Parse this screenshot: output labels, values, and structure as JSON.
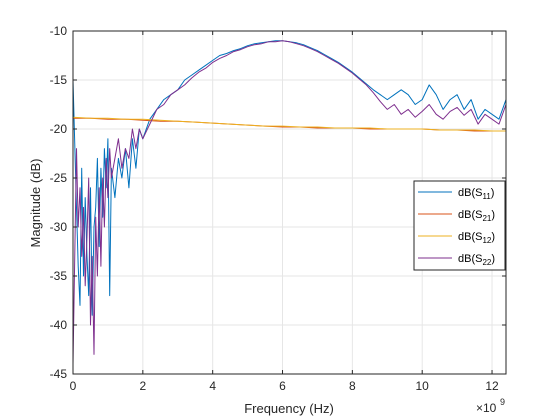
{
  "chart_data": {
    "type": "line",
    "xlabel": "Frequency (Hz)",
    "ylabel": "Magnitude (dB)",
    "x_exponent_label": "×10",
    "x_exponent_power": "9",
    "xlim": [
      0,
      12.4
    ],
    "ylim": [
      -45,
      -10
    ],
    "x_ticks": [
      0,
      2,
      4,
      6,
      8,
      10,
      12
    ],
    "x_tick_labels": [
      "0",
      "2",
      "4",
      "6",
      "8",
      "10",
      "12"
    ],
    "y_ticks": [
      -45,
      -40,
      -35,
      -30,
      -25,
      -20,
      -15,
      -10
    ],
    "y_tick_labels": [
      "-45",
      "-40",
      "-35",
      "-30",
      "-25",
      "-20",
      "-15",
      "-10"
    ],
    "grid": true,
    "legend_position": "right",
    "series": [
      {
        "name": "dB(S11)",
        "name_base": "dB(S",
        "name_sub": "11",
        "name_end": ")",
        "color": "#0072BD",
        "x": [
          0,
          0.1,
          0.15,
          0.2,
          0.25,
          0.3,
          0.35,
          0.4,
          0.45,
          0.5,
          0.55,
          0.6,
          0.65,
          0.7,
          0.75,
          0.8,
          0.85,
          0.9,
          0.95,
          1.0,
          1.05,
          1.1,
          1.2,
          1.3,
          1.4,
          1.5,
          1.6,
          1.7,
          1.8,
          1.9,
          2.0,
          2.2,
          2.4,
          2.6,
          2.8,
          3.0,
          3.2,
          3.4,
          3.6,
          3.8,
          4.0,
          4.2,
          4.4,
          4.6,
          4.8,
          5.0,
          5.2,
          5.4,
          5.6,
          5.8,
          6.0,
          6.2,
          6.4,
          6.6,
          6.8,
          7.0,
          7.2,
          7.4,
          7.6,
          7.8,
          8.0,
          8.2,
          8.4,
          8.6,
          8.8,
          9.0,
          9.2,
          9.4,
          9.6,
          9.8,
          10.0,
          10.2,
          10.4,
          10.6,
          10.8,
          11.0,
          11.2,
          11.4,
          11.6,
          11.8,
          12.0,
          12.2,
          12.4
        ],
        "y": [
          -15,
          -28,
          -34,
          -38,
          -24,
          -35,
          -27,
          -33,
          -37,
          -26,
          -39,
          -30,
          -28,
          -23,
          -32,
          -24,
          -29,
          -22,
          -26,
          -21,
          -37,
          -24,
          -27,
          -23,
          -25,
          -22,
          -26,
          -21,
          -24,
          -20,
          -21,
          -19,
          -18,
          -17,
          -16.5,
          -16,
          -15,
          -14.5,
          -14,
          -13.5,
          -13,
          -12.5,
          -12.3,
          -12,
          -11.8,
          -11.5,
          -11.3,
          -11.2,
          -11.1,
          -11,
          -11,
          -11.1,
          -11.2,
          -11.4,
          -11.7,
          -12,
          -12.4,
          -12.8,
          -13.2,
          -13.7,
          -14.2,
          -14.8,
          -15.4,
          -16,
          -16.5,
          -17,
          -16.5,
          -16,
          -16.5,
          -17.5,
          -17,
          -15.5,
          -16.5,
          -18,
          -17,
          -16.5,
          -18,
          -17,
          -19,
          -18,
          -18.5,
          -19,
          -17
        ]
      },
      {
        "name": "dB(S21)",
        "name_base": "dB(S",
        "name_sub": "21",
        "name_end": ")",
        "color": "#D95319",
        "x": [
          0,
          0.5,
          1,
          1.5,
          2,
          2.5,
          3,
          3.5,
          4,
          4.5,
          5,
          5.5,
          6,
          6.5,
          7,
          7.5,
          8,
          8.5,
          9,
          9.5,
          10,
          10.5,
          11,
          11.5,
          12,
          12.4
        ],
        "y": [
          -18.9,
          -18.9,
          -19.0,
          -19.0,
          -19.1,
          -19.2,
          -19.2,
          -19.3,
          -19.4,
          -19.5,
          -19.6,
          -19.7,
          -19.8,
          -19.8,
          -19.9,
          -19.9,
          -19.9,
          -20.0,
          -20.0,
          -20.0,
          -20.0,
          -20.1,
          -20.1,
          -20.2,
          -20.2,
          -20.2
        ]
      },
      {
        "name": "dB(S12)",
        "name_base": "dB(S",
        "name_sub": "12",
        "name_end": ")",
        "color": "#EDB120",
        "x": [
          0,
          0.5,
          1,
          1.5,
          2,
          2.5,
          3,
          3.5,
          4,
          4.5,
          5,
          5.5,
          6,
          6.5,
          7,
          7.5,
          8,
          8.5,
          9,
          9.5,
          10,
          10.5,
          11,
          11.5,
          12,
          12.4
        ],
        "y": [
          -18.8,
          -18.9,
          -18.9,
          -19.0,
          -19.0,
          -19.1,
          -19.2,
          -19.3,
          -19.4,
          -19.5,
          -19.6,
          -19.7,
          -19.7,
          -19.8,
          -19.8,
          -19.9,
          -19.9,
          -19.9,
          -20.0,
          -20.0,
          -20.0,
          -20.1,
          -20.1,
          -20.1,
          -20.2,
          -20.2
        ]
      },
      {
        "name": "dB(S22)",
        "name_base": "dB(S",
        "name_sub": "22",
        "name_end": ")",
        "color": "#7E2F8E",
        "x": [
          0,
          0.1,
          0.15,
          0.2,
          0.25,
          0.3,
          0.35,
          0.4,
          0.45,
          0.5,
          0.55,
          0.6,
          0.65,
          0.7,
          0.75,
          0.8,
          0.85,
          0.9,
          0.95,
          1.0,
          1.05,
          1.1,
          1.2,
          1.3,
          1.4,
          1.5,
          1.6,
          1.7,
          1.8,
          1.9,
          2.0,
          2.2,
          2.4,
          2.6,
          2.8,
          3.0,
          3.2,
          3.4,
          3.6,
          3.8,
          4.0,
          4.2,
          4.4,
          4.6,
          4.8,
          5.0,
          5.2,
          5.4,
          5.6,
          5.8,
          6.0,
          6.2,
          6.4,
          6.6,
          6.8,
          7.0,
          7.2,
          7.4,
          7.6,
          7.8,
          8.0,
          8.2,
          8.4,
          8.6,
          8.8,
          9.0,
          9.2,
          9.4,
          9.6,
          9.8,
          10.0,
          10.2,
          10.4,
          10.6,
          10.8,
          11.0,
          11.2,
          11.4,
          11.6,
          11.8,
          12.0,
          12.2,
          12.4
        ],
        "y": [
          -44,
          -22,
          -30,
          -26,
          -33,
          -28,
          -36,
          -31,
          -25,
          -40,
          -33,
          -43,
          -29,
          -35,
          -26,
          -34,
          -25,
          -30,
          -23,
          -27,
          -22,
          -25,
          -23,
          -21,
          -24,
          -22,
          -23,
          -20,
          -22,
          -20,
          -21,
          -19.5,
          -18,
          -17.5,
          -16.5,
          -16,
          -15.5,
          -14.8,
          -14.2,
          -13.8,
          -13.2,
          -12.8,
          -12.5,
          -12.1,
          -11.9,
          -11.6,
          -11.4,
          -11.3,
          -11.1,
          -11.1,
          -11,
          -11.1,
          -11.3,
          -11.5,
          -11.8,
          -12.1,
          -12.5,
          -12.9,
          -13.3,
          -13.8,
          -14.3,
          -14.9,
          -15.5,
          -16.3,
          -17.2,
          -18,
          -17.5,
          -18.5,
          -18,
          -18.8,
          -18.2,
          -17.5,
          -18.5,
          -19,
          -18.2,
          -17.8,
          -18.6,
          -18,
          -19.5,
          -18.5,
          -19,
          -19.5,
          -17.5
        ]
      }
    ]
  }
}
